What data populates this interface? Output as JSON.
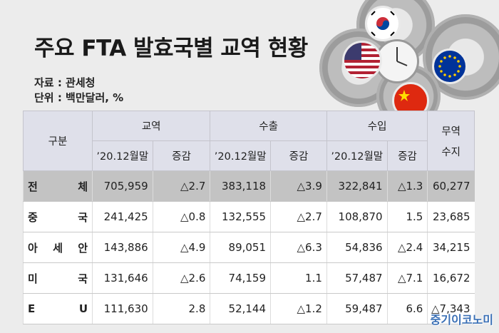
{
  "title": "주요 FTA 발효국별 교역 현황",
  "source": "자료 : 관세청",
  "unit": "단위 : 백만달러, %",
  "header": {
    "category": "구분",
    "trade": "교역",
    "export": "수출",
    "import": "수입",
    "balance_line1": "무역",
    "balance_line2": "수지",
    "period": "’20.12월말",
    "change": "증감"
  },
  "rows": [
    {
      "name_a": "전",
      "name_b": "체",
      "trade": "705,959",
      "trade_chg": "△2.7",
      "exp": "383,118",
      "exp_chg": "△3.9",
      "imp": "322,841",
      "imp_chg": "△1.3",
      "bal": "60,277"
    },
    {
      "name_a": "중",
      "name_b": "국",
      "trade": "241,425",
      "trade_chg": "△0.8",
      "exp": "132,555",
      "exp_chg": "△2.7",
      "imp": "108,870",
      "imp_chg": "1.5",
      "bal": "23,685"
    },
    {
      "name_a": "아",
      "name_mid": "세",
      "name_b": "안",
      "trade": "143,886",
      "trade_chg": "△4.9",
      "exp": "89,051",
      "exp_chg": "△6.3",
      "imp": "54,836",
      "imp_chg": "△2.4",
      "bal": "34,215"
    },
    {
      "name_a": "미",
      "name_b": "국",
      "trade": "131,646",
      "trade_chg": "△2.6",
      "exp": "74,159",
      "exp_chg": "1.1",
      "imp": "57,487",
      "imp_chg": "△7.1",
      "bal": "16,672"
    },
    {
      "name_a": "E",
      "name_b": "U",
      "trade": "111,630",
      "trade_chg": "2.8",
      "exp": "52,144",
      "exp_chg": "△1.2",
      "imp": "59,487",
      "imp_chg": "6.6",
      "bal": "△7,343"
    }
  ],
  "watermark": "중기이코노미"
}
